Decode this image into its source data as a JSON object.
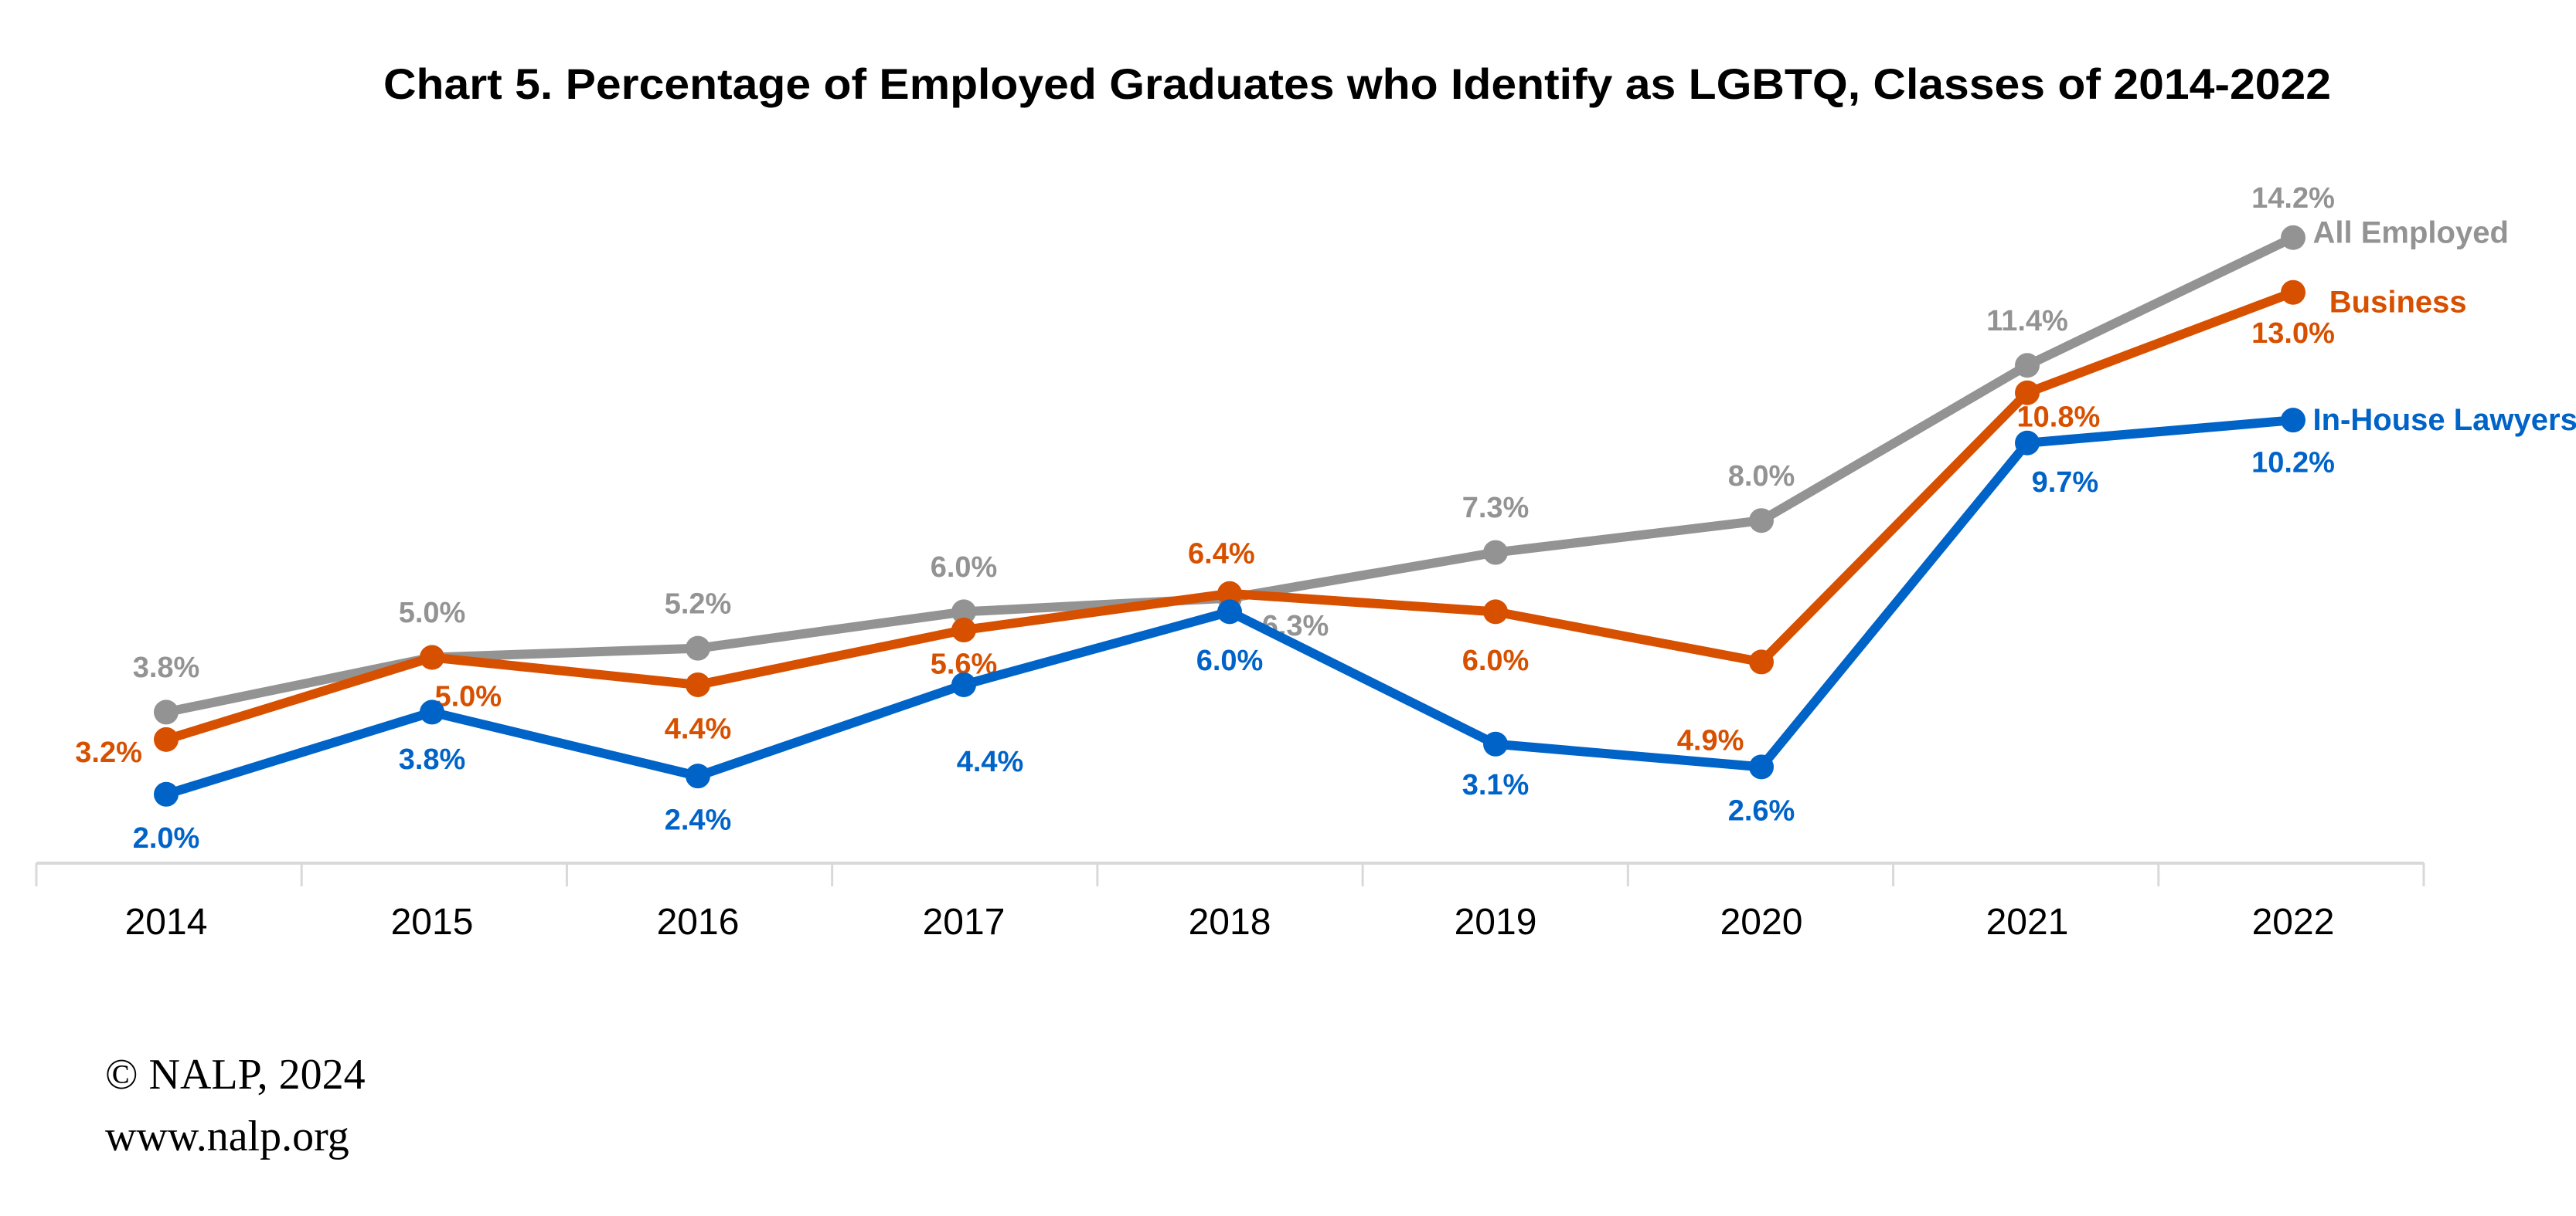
{
  "chart_data": {
    "type": "line",
    "title": "Chart 5. Percentage of Employed Graduates who Identify as LGBTQ, Classes of 2014-2022",
    "xlabel": "",
    "ylabel": "",
    "categories": [
      "2014",
      "2015",
      "2016",
      "2017",
      "2018",
      "2019",
      "2020",
      "2021",
      "2022"
    ],
    "series": [
      {
        "name": "All Employed",
        "color": "#939393",
        "values": [
          3.8,
          5.0,
          5.2,
          6.0,
          6.3,
          7.3,
          8.0,
          11.4,
          14.2
        ]
      },
      {
        "name": "Business",
        "color": "#D75000",
        "values": [
          3.2,
          5.0,
          4.4,
          5.6,
          6.4,
          6.0,
          4.9,
          10.8,
          13.0
        ]
      },
      {
        "name": "In-House Lawyers",
        "color": "#0063C8",
        "values": [
          2.0,
          3.8,
          2.4,
          4.4,
          6.0,
          3.1,
          2.6,
          9.7,
          10.2
        ]
      }
    ],
    "value_suffix": "%",
    "y_axis_visible": false,
    "grid": false,
    "legend": "series names labeled at line ends (right)"
  },
  "footer": {
    "copyright": "© NALP, 2024",
    "website": "www.nalp.org"
  }
}
